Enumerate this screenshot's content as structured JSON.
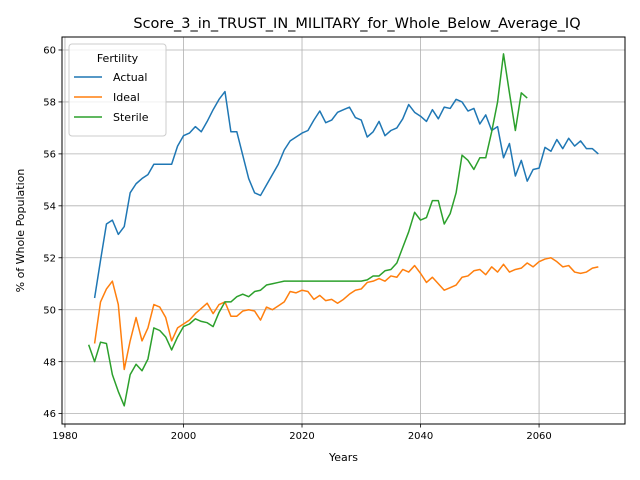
{
  "chart_data": {
    "type": "line",
    "title": "Score_3_in_TRUST_IN_MILITARY_for_Whole_Below_Average_IQ",
    "xlabel": "Years",
    "ylabel": "% of Whole Population",
    "xlim": [
      1979.5,
      2074.5
    ],
    "ylim": [
      45.6,
      60.5
    ],
    "xticks": [
      1980,
      2000,
      2020,
      2040,
      2060
    ],
    "yticks": [
      46,
      48,
      50,
      52,
      54,
      56,
      58,
      60
    ],
    "grid": true,
    "legend": {
      "title": "Fertility",
      "position": "top-left"
    },
    "series": [
      {
        "name": "Actual",
        "color": "#1f77b4",
        "points": [
          [
            1985,
            50.45
          ],
          [
            1986,
            51.9
          ],
          [
            1987,
            53.3
          ],
          [
            1988,
            53.45
          ],
          [
            1989,
            52.9
          ],
          [
            1990,
            53.2
          ],
          [
            1991,
            54.5
          ],
          [
            1992,
            54.85
          ],
          [
            1993,
            55.05
          ],
          [
            1994,
            55.2
          ],
          [
            1995,
            55.6
          ],
          [
            1996,
            55.6
          ],
          [
            1997,
            55.6
          ],
          [
            1998,
            55.6
          ],
          [
            1999,
            56.3
          ],
          [
            2000,
            56.7
          ],
          [
            2001,
            56.8
          ],
          [
            2002,
            57.05
          ],
          [
            2003,
            56.85
          ],
          [
            2004,
            57.25
          ],
          [
            2005,
            57.7
          ],
          [
            2006,
            58.1
          ],
          [
            2007,
            58.4
          ],
          [
            2008,
            56.85
          ],
          [
            2009,
            56.85
          ],
          [
            2010,
            55.95
          ],
          [
            2011,
            55.05
          ],
          [
            2012,
            54.5
          ],
          [
            2013,
            54.4
          ],
          [
            2014,
            54.8
          ],
          [
            2015,
            55.2
          ],
          [
            2016,
            55.6
          ],
          [
            2017,
            56.15
          ],
          [
            2018,
            56.5
          ],
          [
            2019,
            56.65
          ],
          [
            2020,
            56.8
          ],
          [
            2021,
            56.9
          ],
          [
            2022,
            57.3
          ],
          [
            2023,
            57.65
          ],
          [
            2024,
            57.2
          ],
          [
            2025,
            57.3
          ],
          [
            2026,
            57.6
          ],
          [
            2027,
            57.7
          ],
          [
            2028,
            57.8
          ],
          [
            2029,
            57.4
          ],
          [
            2030,
            57.3
          ],
          [
            2031,
            56.65
          ],
          [
            2032,
            56.85
          ],
          [
            2033,
            57.25
          ],
          [
            2034,
            56.7
          ],
          [
            2035,
            56.9
          ],
          [
            2036,
            57.0
          ],
          [
            2037,
            57.35
          ],
          [
            2038,
            57.9
          ],
          [
            2039,
            57.6
          ],
          [
            2040,
            57.45
          ],
          [
            2041,
            57.25
          ],
          [
            2042,
            57.7
          ],
          [
            2043,
            57.35
          ],
          [
            2044,
            57.8
          ],
          [
            2045,
            57.75
          ],
          [
            2046,
            58.1
          ],
          [
            2047,
            58.0
          ],
          [
            2048,
            57.65
          ],
          [
            2049,
            57.75
          ],
          [
            2050,
            57.15
          ],
          [
            2051,
            57.5
          ],
          [
            2052,
            56.9
          ],
          [
            2053,
            57.05
          ],
          [
            2054,
            55.85
          ],
          [
            2055,
            56.4
          ],
          [
            2056,
            55.15
          ],
          [
            2057,
            55.75
          ],
          [
            2058,
            54.95
          ],
          [
            2059,
            55.4
          ],
          [
            2060,
            55.45
          ],
          [
            2061,
            56.25
          ],
          [
            2062,
            56.1
          ],
          [
            2063,
            56.55
          ],
          [
            2064,
            56.2
          ],
          [
            2065,
            56.6
          ],
          [
            2066,
            56.3
          ],
          [
            2067,
            56.5
          ],
          [
            2068,
            56.2
          ],
          [
            2069,
            56.2
          ],
          [
            2070,
            56.0
          ]
        ]
      },
      {
        "name": "Ideal",
        "color": "#ff7f0e",
        "points": [
          [
            1985,
            48.7
          ],
          [
            1986,
            50.3
          ],
          [
            1987,
            50.8
          ],
          [
            1988,
            51.1
          ],
          [
            1989,
            50.2
          ],
          [
            1990,
            47.7
          ],
          [
            1991,
            48.8
          ],
          [
            1992,
            49.7
          ],
          [
            1993,
            48.8
          ],
          [
            1994,
            49.3
          ],
          [
            1995,
            50.2
          ],
          [
            1996,
            50.1
          ],
          [
            1997,
            49.7
          ],
          [
            1998,
            48.8
          ],
          [
            1999,
            49.3
          ],
          [
            2000,
            49.45
          ],
          [
            2001,
            49.6
          ],
          [
            2002,
            49.85
          ],
          [
            2003,
            50.05
          ],
          [
            2004,
            50.25
          ],
          [
            2005,
            49.85
          ],
          [
            2006,
            50.2
          ],
          [
            2007,
            50.3
          ],
          [
            2008,
            49.75
          ],
          [
            2009,
            49.75
          ],
          [
            2010,
            49.95
          ],
          [
            2011,
            50.0
          ],
          [
            2012,
            49.95
          ],
          [
            2013,
            49.6
          ],
          [
            2014,
            50.1
          ],
          [
            2015,
            50.0
          ],
          [
            2016,
            50.15
          ],
          [
            2017,
            50.3
          ],
          [
            2018,
            50.7
          ],
          [
            2019,
            50.65
          ],
          [
            2020,
            50.75
          ],
          [
            2021,
            50.7
          ],
          [
            2022,
            50.4
          ],
          [
            2023,
            50.55
          ],
          [
            2024,
            50.35
          ],
          [
            2025,
            50.4
          ],
          [
            2026,
            50.25
          ],
          [
            2027,
            50.4
          ],
          [
            2028,
            50.6
          ],
          [
            2029,
            50.75
          ],
          [
            2030,
            50.8
          ],
          [
            2031,
            51.05
          ],
          [
            2032,
            51.1
          ],
          [
            2033,
            51.2
          ],
          [
            2034,
            51.1
          ],
          [
            2035,
            51.3
          ],
          [
            2036,
            51.25
          ],
          [
            2037,
            51.55
          ],
          [
            2038,
            51.45
          ],
          [
            2039,
            51.7
          ],
          [
            2040,
            51.4
          ],
          [
            2041,
            51.05
          ],
          [
            2042,
            51.25
          ],
          [
            2043,
            51.0
          ],
          [
            2044,
            50.75
          ],
          [
            2045,
            50.85
          ],
          [
            2046,
            50.95
          ],
          [
            2047,
            51.25
          ],
          [
            2048,
            51.3
          ],
          [
            2049,
            51.5
          ],
          [
            2050,
            51.55
          ],
          [
            2051,
            51.35
          ],
          [
            2052,
            51.65
          ],
          [
            2053,
            51.45
          ],
          [
            2054,
            51.75
          ],
          [
            2055,
            51.45
          ],
          [
            2056,
            51.55
          ],
          [
            2057,
            51.6
          ],
          [
            2058,
            51.8
          ],
          [
            2059,
            51.65
          ],
          [
            2060,
            51.85
          ],
          [
            2061,
            51.95
          ],
          [
            2062,
            52.0
          ],
          [
            2063,
            51.85
          ],
          [
            2064,
            51.65
          ],
          [
            2065,
            51.7
          ],
          [
            2066,
            51.45
          ],
          [
            2067,
            51.4
          ],
          [
            2068,
            51.45
          ],
          [
            2069,
            51.6
          ],
          [
            2070,
            51.65
          ]
        ]
      },
      {
        "name": "Sterile",
        "color": "#2ca02c",
        "points": [
          [
            1984,
            48.65
          ],
          [
            1985,
            48.0
          ],
          [
            1986,
            48.75
          ],
          [
            1987,
            48.7
          ],
          [
            1988,
            47.5
          ],
          [
            1989,
            46.85
          ],
          [
            1990,
            46.3
          ],
          [
            1991,
            47.5
          ],
          [
            1992,
            47.9
          ],
          [
            1993,
            47.65
          ],
          [
            1994,
            48.1
          ],
          [
            1995,
            49.3
          ],
          [
            1996,
            49.2
          ],
          [
            1997,
            48.95
          ],
          [
            1998,
            48.45
          ],
          [
            1999,
            48.95
          ],
          [
            2000,
            49.35
          ],
          [
            2001,
            49.45
          ],
          [
            2002,
            49.65
          ],
          [
            2003,
            49.55
          ],
          [
            2004,
            49.5
          ],
          [
            2005,
            49.35
          ],
          [
            2006,
            49.9
          ],
          [
            2007,
            50.3
          ],
          [
            2008,
            50.3
          ],
          [
            2009,
            50.5
          ],
          [
            2010,
            50.6
          ],
          [
            2011,
            50.5
          ],
          [
            2012,
            50.7
          ],
          [
            2013,
            50.75
          ],
          [
            2014,
            50.95
          ],
          [
            2015,
            51.0
          ],
          [
            2016,
            51.05
          ],
          [
            2017,
            51.1
          ],
          [
            2018,
            51.1
          ],
          [
            2019,
            51.1
          ],
          [
            2020,
            51.1
          ],
          [
            2021,
            51.1
          ],
          [
            2022,
            51.1
          ],
          [
            2023,
            51.1
          ],
          [
            2024,
            51.1
          ],
          [
            2025,
            51.1
          ],
          [
            2026,
            51.1
          ],
          [
            2027,
            51.1
          ],
          [
            2028,
            51.1
          ],
          [
            2029,
            51.1
          ],
          [
            2030,
            51.1
          ],
          [
            2031,
            51.15
          ],
          [
            2032,
            51.3
          ],
          [
            2033,
            51.3
          ],
          [
            2034,
            51.5
          ],
          [
            2035,
            51.55
          ],
          [
            2036,
            51.8
          ],
          [
            2037,
            52.4
          ],
          [
            2038,
            53.0
          ],
          [
            2039,
            53.75
          ],
          [
            2040,
            53.45
          ],
          [
            2041,
            53.55
          ],
          [
            2042,
            54.2
          ],
          [
            2043,
            54.2
          ],
          [
            2044,
            53.3
          ],
          [
            2045,
            53.7
          ],
          [
            2046,
            54.5
          ],
          [
            2047,
            55.95
          ],
          [
            2048,
            55.75
          ],
          [
            2049,
            55.4
          ],
          [
            2050,
            55.85
          ],
          [
            2051,
            55.85
          ],
          [
            2052,
            56.85
          ],
          [
            2053,
            58.0
          ],
          [
            2054,
            59.85
          ],
          [
            2055,
            58.35
          ],
          [
            2056,
            56.9
          ],
          [
            2057,
            58.35
          ],
          [
            2058,
            58.15
          ]
        ]
      }
    ]
  }
}
